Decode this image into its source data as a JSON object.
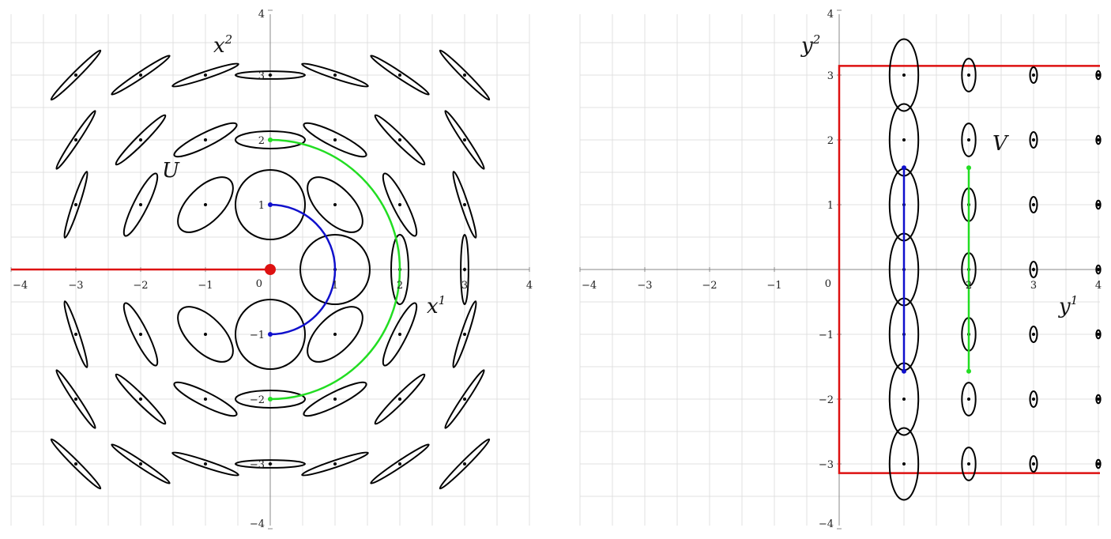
{
  "left_panel": {
    "axis_labels": {
      "x": "x",
      "x_sup": "1",
      "y": "x",
      "y_sup": "2"
    },
    "region_label": "U",
    "x_ticks": [
      "−4",
      "−3",
      "−2",
      "−1",
      "0",
      "1",
      "2",
      "3",
      "4"
    ],
    "y_ticks": [
      "4",
      "3",
      "2",
      "1",
      "−1",
      "−2",
      "−3",
      "−4"
    ],
    "x_tick_values": [
      -4,
      -3,
      -2,
      -1,
      0,
      1,
      2,
      3,
      4
    ],
    "y_tick_values": [
      4,
      3,
      2,
      1,
      -1,
      -2,
      -3,
      -4
    ],
    "xlim": [
      -4,
      4
    ],
    "ylim": [
      -4,
      4
    ],
    "grid": true,
    "cut_ray": {
      "from": [
        -4,
        0
      ],
      "to": [
        0,
        0
      ],
      "color": "#dd1111"
    },
    "origin_marker_color": "#dd1111",
    "curves": [
      {
        "name": "semicircle-r1",
        "radius": 1,
        "color": "#1010cc"
      },
      {
        "name": "semicircle-r2",
        "radius": 2,
        "color": "#22dd22"
      }
    ]
  },
  "right_panel": {
    "axis_labels": {
      "x": "y",
      "x_sup": "1",
      "y": "y",
      "y_sup": "2"
    },
    "region_label": "V",
    "x_ticks": [
      "−4",
      "−3",
      "−2",
      "−1",
      "0",
      "2",
      "3",
      "4"
    ],
    "y_ticks": [
      "4",
      "3",
      "2",
      "1",
      "−1",
      "−2",
      "−3",
      "−4"
    ],
    "x_tick_values": [
      -4,
      -3,
      -2,
      -1,
      0,
      2,
      3,
      4
    ],
    "y_tick_values": [
      4,
      3,
      2,
      1,
      -1,
      -2,
      -3,
      -4
    ],
    "xlim": [
      -4,
      4
    ],
    "ylim": [
      -4,
      4
    ],
    "grid": true,
    "region_boundary_y": 3.14159,
    "region_color": "#dd1111",
    "segments": [
      {
        "name": "segment-y1-1",
        "x": 1,
        "from": -1.5708,
        "to": 1.5708,
        "color": "#1010cc"
      },
      {
        "name": "segment-y1-2",
        "x": 2,
        "from": -1.5708,
        "to": 1.5708,
        "color": "#22dd22"
      }
    ]
  }
}
